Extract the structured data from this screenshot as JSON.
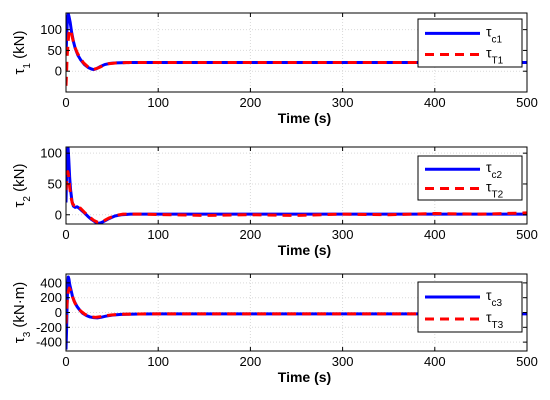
{
  "chart_data": [
    {
      "type": "line",
      "ylabel": {
        "symbol": "τ",
        "sub": "1",
        "unit": " (kN)"
      },
      "xlabel": "Time (s)",
      "xlim": [
        0,
        500
      ],
      "ylim": [
        -50,
        140
      ],
      "xticks": [
        0,
        100,
        200,
        300,
        400,
        500
      ],
      "yticks": [
        0,
        50,
        100
      ],
      "grid": true,
      "legend": "top-right",
      "series": [
        {
          "name": {
            "symbol": "τ",
            "sub": "c1"
          },
          "color": "#0000ff",
          "style": "solid",
          "points": [
            [
              0,
              40
            ],
            [
              0.8,
              85
            ],
            [
              1.5,
              125
            ],
            [
              2.5,
              138
            ],
            [
              3.2,
              132
            ],
            [
              4.5,
              118
            ],
            [
              6,
              95
            ],
            [
              8,
              72
            ],
            [
              10,
              55
            ],
            [
              13,
              38
            ],
            [
              16,
              27
            ],
            [
              20,
              16
            ],
            [
              24,
              9
            ],
            [
              28,
              5
            ],
            [
              30,
              4
            ],
            [
              33,
              6
            ],
            [
              37,
              11
            ],
            [
              42,
              16
            ],
            [
              48,
              19
            ],
            [
              55,
              20
            ],
            [
              70,
              21
            ],
            [
              100,
              21
            ],
            [
              200,
              21
            ],
            [
              300,
              21
            ],
            [
              400,
              21
            ],
            [
              500,
              21
            ]
          ]
        },
        {
          "name": {
            "symbol": "τ",
            "sub": "T1"
          },
          "color": "#ff0000",
          "style": "dashed",
          "points": [
            [
              0,
              -35
            ],
            [
              0.5,
              -10
            ],
            [
              1.2,
              35
            ],
            [
              2,
              60
            ],
            [
              3,
              90
            ],
            [
              4,
              100
            ],
            [
              5.5,
              95
            ],
            [
              7,
              80
            ],
            [
              9,
              62
            ],
            [
              12,
              45
            ],
            [
              15,
              33
            ],
            [
              19,
              20
            ],
            [
              24,
              10
            ],
            [
              28,
              6
            ],
            [
              31,
              5
            ],
            [
              35,
              8
            ],
            [
              40,
              13
            ],
            [
              46,
              18
            ],
            [
              55,
              20
            ],
            [
              70,
              21
            ],
            [
              100,
              21
            ],
            [
              200,
              21
            ],
            [
              300,
              21
            ],
            [
              400,
              21
            ],
            [
              500,
              21
            ]
          ]
        }
      ]
    },
    {
      "type": "line",
      "ylabel": {
        "symbol": "τ",
        "sub": "2",
        "unit": " (kN)"
      },
      "xlabel": "Time (s)",
      "xlim": [
        0,
        500
      ],
      "ylim": [
        -15,
        110
      ],
      "xticks": [
        0,
        100,
        200,
        300,
        400,
        500
      ],
      "yticks": [
        0,
        50,
        100
      ],
      "grid": true,
      "legend": "top-right",
      "series": [
        {
          "name": {
            "symbol": "τ",
            "sub": "c2"
          },
          "color": "#0000ff",
          "style": "solid",
          "points": [
            [
              0,
              20
            ],
            [
              0.8,
              75
            ],
            [
              1.5,
              100
            ],
            [
              2.3,
              108
            ],
            [
              3,
              90
            ],
            [
              4,
              60
            ],
            [
              5,
              40
            ],
            [
              6.5,
              22
            ],
            [
              8,
              14
            ],
            [
              10,
              12
            ],
            [
              12,
              13
            ],
            [
              14,
              11
            ],
            [
              17,
              7
            ],
            [
              20,
              3
            ],
            [
              24,
              -3
            ],
            [
              28,
              -8
            ],
            [
              32,
              -12
            ],
            [
              35,
              -14
            ],
            [
              38,
              -13
            ],
            [
              42,
              -10
            ],
            [
              47,
              -6
            ],
            [
              53,
              -2
            ],
            [
              60,
              0
            ],
            [
              70,
              1
            ],
            [
              100,
              1
            ],
            [
              200,
              1
            ],
            [
              300,
              1
            ],
            [
              400,
              1
            ],
            [
              500,
              1
            ]
          ]
        },
        {
          "name": {
            "symbol": "τ",
            "sub": "T2"
          },
          "color": "#ff0000",
          "style": "dashed",
          "points": [
            [
              0,
              40
            ],
            [
              1,
              60
            ],
            [
              2,
              70
            ],
            [
              3,
              62
            ],
            [
              4,
              45
            ],
            [
              5.5,
              28
            ],
            [
              7,
              18
            ],
            [
              9,
              15
            ],
            [
              11,
              16
            ],
            [
              13,
              15
            ],
            [
              16,
              10
            ],
            [
              20,
              4
            ],
            [
              25,
              -3
            ],
            [
              30,
              -9
            ],
            [
              34,
              -12
            ],
            [
              38,
              -12
            ],
            [
              42,
              -9
            ],
            [
              47,
              -5
            ],
            [
              54,
              -1
            ],
            [
              62,
              1
            ],
            [
              80,
              1
            ],
            [
              150,
              -1
            ],
            [
              200,
              0
            ],
            [
              250,
              -1
            ],
            [
              300,
              1
            ],
            [
              350,
              0
            ],
            [
              400,
              2
            ],
            [
              450,
              1
            ],
            [
              500,
              3
            ]
          ]
        }
      ]
    },
    {
      "type": "line",
      "ylabel": {
        "symbol": "τ",
        "sub": "3",
        "unit": " (kN·m)"
      },
      "xlabel": "Time (s)",
      "xlim": [
        0,
        500
      ],
      "ylim": [
        -520,
        520
      ],
      "xticks": [
        0,
        100,
        200,
        300,
        400,
        500
      ],
      "yticks": [
        -400,
        -200,
        0,
        200,
        400
      ],
      "grid": true,
      "legend": "top-right",
      "series": [
        {
          "name": {
            "symbol": "τ",
            "sub": "c3"
          },
          "color": "#0000ff",
          "style": "solid",
          "points": [
            [
              0,
              -500
            ],
            [
              0.6,
              -250
            ],
            [
              1.2,
              100
            ],
            [
              1.8,
              350
            ],
            [
              2.5,
              480
            ],
            [
              3.2,
              450
            ],
            [
              4,
              380
            ],
            [
              5.5,
              300
            ],
            [
              7,
              220
            ],
            [
              9,
              150
            ],
            [
              12,
              80
            ],
            [
              15,
              30
            ],
            [
              18,
              -10
            ],
            [
              22,
              -40
            ],
            [
              26,
              -60
            ],
            [
              30,
              -70
            ],
            [
              34,
              -72
            ],
            [
              38,
              -65
            ],
            [
              43,
              -50
            ],
            [
              50,
              -35
            ],
            [
              60,
              -25
            ],
            [
              80,
              -20
            ],
            [
              100,
              -18
            ],
            [
              200,
              -18
            ],
            [
              300,
              -18
            ],
            [
              400,
              -18
            ],
            [
              500,
              -18
            ]
          ]
        },
        {
          "name": {
            "symbol": "τ",
            "sub": "T3"
          },
          "color": "#ff0000",
          "style": "dashed",
          "points": [
            [
              0,
              -150
            ],
            [
              0.8,
              50
            ],
            [
              1.5,
              200
            ],
            [
              2.5,
              280
            ],
            [
              3.5,
              330
            ],
            [
              4.5,
              310
            ],
            [
              6,
              250
            ],
            [
              8,
              180
            ],
            [
              10,
              120
            ],
            [
              13,
              60
            ],
            [
              16,
              20
            ],
            [
              20,
              -20
            ],
            [
              24,
              -45
            ],
            [
              28,
              -60
            ],
            [
              32,
              -65
            ],
            [
              37,
              -58
            ],
            [
              42,
              -45
            ],
            [
              50,
              -32
            ],
            [
              60,
              -24
            ],
            [
              80,
              -20
            ],
            [
              100,
              -18
            ],
            [
              200,
              -18
            ],
            [
              300,
              -18
            ],
            [
              400,
              -18
            ],
            [
              500,
              -18
            ]
          ]
        }
      ]
    }
  ]
}
